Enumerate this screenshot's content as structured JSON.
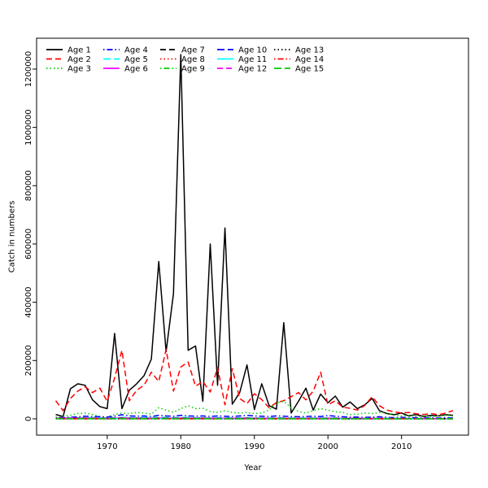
{
  "figure": {
    "background": "#ffffff",
    "box_color": "#000000",
    "text_color": "#000000"
  },
  "chart_data": {
    "type": "line",
    "title": "",
    "xlabel": "Year",
    "ylabel": "Catch in numbers",
    "x_ticks": [
      1970,
      1980,
      1990,
      2000,
      2010
    ],
    "y_ticks": [
      0,
      200000,
      400000,
      600000,
      800000,
      1000000,
      1200000
    ],
    "xlim": [
      1960.4,
      2019.1
    ],
    "ylim": [
      -56000,
      1306000
    ],
    "grid": false,
    "legend_position": "top-left",
    "legend_rows": 3,
    "legend_columns": 5,
    "x": [
      1963,
      1964,
      1965,
      1966,
      1967,
      1968,
      1969,
      1970,
      1971,
      1972,
      1973,
      1974,
      1975,
      1976,
      1977,
      1978,
      1979,
      1980,
      1981,
      1982,
      1983,
      1984,
      1985,
      1986,
      1987,
      1988,
      1989,
      1990,
      1991,
      1992,
      1993,
      1994,
      1995,
      1996,
      1997,
      1998,
      1999,
      2000,
      2001,
      2002,
      2003,
      2004,
      2005,
      2006,
      2007,
      2008,
      2009,
      2010,
      2011,
      2012,
      2013,
      2014,
      2015,
      2016,
      2017
    ],
    "series": [
      {
        "name": "Age 1",
        "color": "#000000",
        "linestyle": "solid",
        "values": [
          15000,
          8000,
          103000,
          120000,
          115000,
          65000,
          42000,
          35000,
          293000,
          35000,
          98000,
          120000,
          148000,
          205000,
          540000,
          230000,
          430000,
          1250000,
          235000,
          250000,
          60000,
          600000,
          115000,
          655000,
          50000,
          90000,
          185000,
          32000,
          120000,
          45000,
          33000,
          330000,
          20000,
          60000,
          105000,
          30000,
          85000,
          55000,
          78000,
          40000,
          58000,
          35000,
          48000,
          70000,
          28000,
          18000,
          14000,
          20000,
          10000,
          15000,
          8000,
          12000,
          10000,
          14000,
          12000
        ]
      },
      {
        "name": "Age 2",
        "color": "#FF0000",
        "linestyle": "dashed",
        "values": [
          62000,
          28000,
          70000,
          95000,
          110000,
          90000,
          105000,
          60000,
          140000,
          235000,
          62000,
          98000,
          115000,
          160000,
          128000,
          238000,
          95000,
          178000,
          195000,
          112000,
          128000,
          92000,
          176000,
          48000,
          172000,
          70000,
          52000,
          86000,
          66000,
          38000,
          56000,
          62000,
          76000,
          90000,
          65000,
          95000,
          160000,
          48000,
          62000,
          40000,
          36000,
          30000,
          46000,
          76000,
          45000,
          30000,
          24000,
          20000,
          22000,
          17000,
          15000,
          18000,
          14000,
          20000,
          28000
        ]
      },
      {
        "name": "Age 3",
        "color": "#00CD00",
        "linestyle": "dotted",
        "values": [
          5000,
          8000,
          12000,
          18000,
          20000,
          15000,
          8000,
          6000,
          15000,
          20000,
          18000,
          22000,
          20000,
          16000,
          38000,
          30000,
          22000,
          35000,
          45000,
          35000,
          36000,
          25000,
          22000,
          28000,
          22000,
          20000,
          22000,
          18000,
          20000,
          30000,
          55000,
          60000,
          38000,
          25000,
          20000,
          28000,
          35000,
          30000,
          24000,
          22000,
          14000,
          16000,
          20000,
          18000,
          22000,
          20000,
          12000,
          10000,
          12000,
          8000,
          10000,
          8000,
          10000,
          12000,
          10000
        ]
      },
      {
        "name": "Age 4",
        "color": "#0000FF",
        "linestyle": "dotdash",
        "values": [
          3000,
          4000,
          5000,
          7000,
          9000,
          8000,
          7000,
          6000,
          9000,
          14000,
          10000,
          9000,
          10000,
          8000,
          12000,
          10000,
          9000,
          12000,
          10000,
          9000,
          10000,
          8000,
          10000,
          9000,
          8000,
          10000,
          12000,
          10000,
          9000,
          8000,
          10000,
          9000,
          8000,
          7000,
          8000,
          9000,
          8000,
          11000,
          9000,
          7000,
          6000,
          6000,
          5000,
          6000,
          7000,
          5000,
          4000,
          5000,
          4000,
          4000,
          3000,
          4000,
          3000,
          4000,
          3000
        ]
      },
      {
        "name": "Age 5",
        "color": "#00FFFF",
        "linestyle": "longdash",
        "values": [
          2000,
          2000,
          3000,
          3000,
          4000,
          4000,
          3000,
          3000,
          4000,
          5000,
          4000,
          4000,
          5000,
          4000,
          5000,
          5000,
          4000,
          5000,
          5000,
          4000,
          4000,
          3000,
          4000,
          4000,
          3000,
          4000,
          4000,
          3000,
          3000,
          3000,
          4000,
          3000,
          3000,
          3000,
          3000,
          3000,
          3000,
          3000,
          3000,
          2000,
          2000,
          2000,
          2000,
          2000,
          2000,
          2000,
          2000,
          2000,
          1000,
          1000,
          1000,
          1000,
          1000,
          1000,
          1000
        ]
      },
      {
        "name": "Age 6",
        "color": "#FF00FF",
        "linestyle": "solid",
        "values": [
          2000,
          1800,
          2200,
          2500,
          2400,
          2200,
          2000,
          1800,
          2400,
          2800,
          2400,
          2200,
          2400,
          2000,
          2600,
          2400,
          2200,
          2600,
          2400,
          2200,
          2400,
          2000,
          2200,
          2000,
          1800,
          2200,
          2400,
          2000,
          1800,
          1600,
          2000,
          1800,
          1600,
          1500,
          1600,
          1800,
          1600,
          2000,
          1800,
          1500,
          1400,
          1400,
          1200,
          1400,
          1500,
          1200,
          1000,
          1200,
          1000,
          1000,
          800,
          1000,
          800,
          1000,
          800
        ]
      },
      {
        "name": "Age 7",
        "color": "#000000",
        "linestyle": "dashed",
        "values": [
          1200,
          1100,
          1300,
          1500,
          1400,
          1300,
          1200,
          1100,
          1400,
          1600,
          1400,
          1300,
          1400,
          1200,
          1500,
          1400,
          1300,
          1500,
          1400,
          1300,
          1400,
          1200,
          1300,
          1200,
          1100,
          1300,
          1400,
          1200,
          1100,
          1000,
          1200,
          1100,
          1000,
          900,
          1000,
          1100,
          1000,
          1200,
          1100,
          900,
          800,
          800,
          700,
          800,
          900,
          700,
          600,
          700,
          600,
          600,
          500,
          600,
          500,
          600,
          500
        ]
      },
      {
        "name": "Age 8",
        "color": "#FF0000",
        "linestyle": "dotted",
        "values": [
          800,
          700,
          900,
          1000,
          900,
          800,
          800,
          700,
          900,
          1100,
          900,
          800,
          900,
          800,
          1000,
          900,
          800,
          1000,
          900,
          800,
          900,
          800,
          800,
          800,
          700,
          800,
          900,
          800,
          700,
          600,
          800,
          700,
          600,
          600,
          600,
          700,
          600,
          800,
          700,
          600,
          500,
          500,
          400,
          500,
          600,
          400,
          400,
          400,
          400,
          400,
          300,
          400,
          300,
          400,
          300
        ]
      },
      {
        "name": "Age 9",
        "color": "#00CD00",
        "linestyle": "dotdash",
        "values": [
          500,
          450,
          550,
          650,
          600,
          550,
          500,
          450,
          600,
          700,
          600,
          550,
          600,
          500,
          650,
          600,
          550,
          650,
          600,
          550,
          600,
          500,
          550,
          500,
          450,
          550,
          600,
          500,
          450,
          400,
          500,
          450,
          400,
          380,
          400,
          450,
          400,
          500,
          450,
          380,
          330,
          330,
          280,
          330,
          380,
          280,
          250,
          280,
          250,
          250,
          200,
          250,
          200,
          250,
          200
        ]
      },
      {
        "name": "Age 10",
        "color": "#0000FF",
        "linestyle": "longdash",
        "values": [
          350,
          320,
          380,
          450,
          420,
          380,
          350,
          320,
          420,
          490,
          420,
          380,
          420,
          350,
          450,
          420,
          380,
          450,
          420,
          380,
          420,
          350,
          380,
          350,
          320,
          380,
          420,
          350,
          320,
          280,
          350,
          320,
          280,
          260,
          280,
          320,
          280,
          350,
          320,
          260,
          230,
          230,
          200,
          230,
          260,
          200,
          180,
          200,
          180,
          180,
          140,
          180,
          140,
          180,
          140
        ]
      },
      {
        "name": "Age 11",
        "color": "#00FFFF",
        "linestyle": "solid",
        "values": [
          250,
          230,
          270,
          320,
          300,
          270,
          250,
          230,
          300,
          350,
          300,
          270,
          300,
          250,
          320,
          300,
          270,
          320,
          300,
          270,
          300,
          250,
          270,
          250,
          230,
          270,
          300,
          250,
          230,
          200,
          250,
          230,
          200,
          190,
          200,
          230,
          200,
          250,
          230,
          190,
          160,
          160,
          140,
          160,
          190,
          140,
          130,
          140,
          130,
          130,
          100,
          130,
          100,
          130,
          100
        ]
      },
      {
        "name": "Age 12",
        "color": "#FF00FF",
        "linestyle": "dashed",
        "values": [
          180,
          160,
          190,
          220,
          210,
          190,
          180,
          160,
          210,
          250,
          210,
          190,
          210,
          180,
          220,
          210,
          190,
          220,
          210,
          190,
          210,
          180,
          190,
          180,
          160,
          190,
          210,
          180,
          160,
          140,
          180,
          160,
          140,
          130,
          140,
          160,
          140,
          180,
          160,
          130,
          110,
          110,
          100,
          110,
          130,
          100,
          90,
          100,
          90,
          90,
          70,
          90,
          70,
          90,
          70
        ]
      },
      {
        "name": "Age 13",
        "color": "#000000",
        "linestyle": "dotted",
        "values": [
          120,
          110,
          130,
          150,
          140,
          130,
          120,
          110,
          140,
          170,
          140,
          130,
          140,
          120,
          150,
          140,
          130,
          150,
          140,
          130,
          140,
          120,
          130,
          120,
          110,
          130,
          140,
          120,
          110,
          100,
          120,
          110,
          100,
          90,
          100,
          110,
          100,
          120,
          110,
          90,
          80,
          80,
          70,
          80,
          90,
          70,
          60,
          70,
          60,
          60,
          50,
          60,
          50,
          60,
          50
        ]
      },
      {
        "name": "Age 14",
        "color": "#FF0000",
        "linestyle": "dotdash",
        "values": [
          80,
          70,
          90,
          100,
          95,
          90,
          80,
          70,
          95,
          110,
          95,
          90,
          95,
          80,
          100,
          95,
          90,
          100,
          95,
          90,
          95,
          80,
          90,
          80,
          70,
          90,
          95,
          80,
          70,
          60,
          80,
          70,
          60,
          60,
          60,
          70,
          60,
          80,
          70,
          60,
          50,
          50,
          40,
          50,
          60,
          40,
          40,
          40,
          40,
          40,
          30,
          40,
          30,
          40,
          30
        ]
      },
      {
        "name": "Age 15",
        "color": "#00CD00",
        "linestyle": "longdash",
        "values": [
          50,
          45,
          55,
          65,
          60,
          55,
          50,
          45,
          60,
          70,
          60,
          55,
          60,
          50,
          65,
          60,
          55,
          65,
          60,
          55,
          60,
          50,
          55,
          50,
          45,
          55,
          60,
          50,
          45,
          40,
          50,
          45,
          40,
          38,
          40,
          45,
          40,
          50,
          45,
          38,
          33,
          33,
          28,
          33,
          38,
          28,
          25,
          28,
          25,
          25,
          20,
          25,
          20,
          25,
          20
        ]
      }
    ]
  }
}
